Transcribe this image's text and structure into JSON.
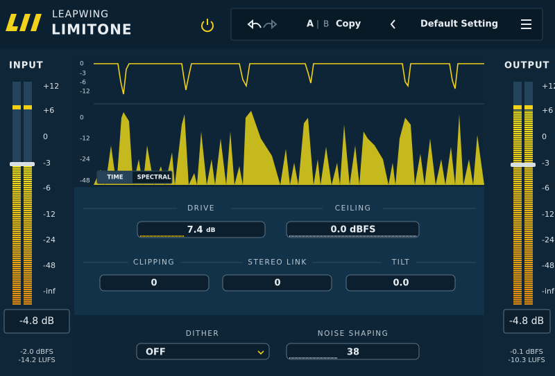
{
  "header": {
    "brand": "LEAPWING",
    "product": "LIMITONE"
  },
  "toolbar": {
    "a": "A",
    "separator": "|",
    "b": "B",
    "copy": "Copy",
    "preset": "Default Setting"
  },
  "input": {
    "label": "INPUT",
    "scale": [
      "+12",
      "+6",
      "0",
      "-3",
      "-6",
      "-12",
      "-24",
      "-48",
      "-inf"
    ],
    "readout": "-4.8 dB",
    "peak": "-2.0 dBFS",
    "loudness": "-14.2 LUFS"
  },
  "output": {
    "label": "OUTPUT",
    "scale": [
      "+12",
      "+6",
      "0",
      "-3",
      "-6",
      "-12",
      "-24",
      "-48",
      "-inf"
    ],
    "readout": "-4.8 dB",
    "peak": "-0.1 dBFS",
    "loudness": "-10.3 LUFS"
  },
  "display": {
    "gain_reduction_scale": [
      "0",
      "-3",
      "-6",
      "-12"
    ],
    "level_scale": [
      "0",
      "-12",
      "-24",
      "-48"
    ],
    "modes": [
      "TIME",
      "SPECTRAL"
    ]
  },
  "controls": {
    "drive": {
      "label": "DRIVE",
      "value": "7.4",
      "unit": "dB"
    },
    "ceiling": {
      "label": "CEILING",
      "value": "0.0 dBFS"
    },
    "clipping": {
      "label": "CLIPPING",
      "value": "0"
    },
    "stereo_link": {
      "label": "STEREO LINK",
      "value": "0"
    },
    "tilt": {
      "label": "TILT",
      "value": "0.0"
    },
    "dither": {
      "label": "DITHER",
      "value": "OFF"
    },
    "noise_shaping": {
      "label": "NOISE SHAPING",
      "value": "38"
    }
  }
}
